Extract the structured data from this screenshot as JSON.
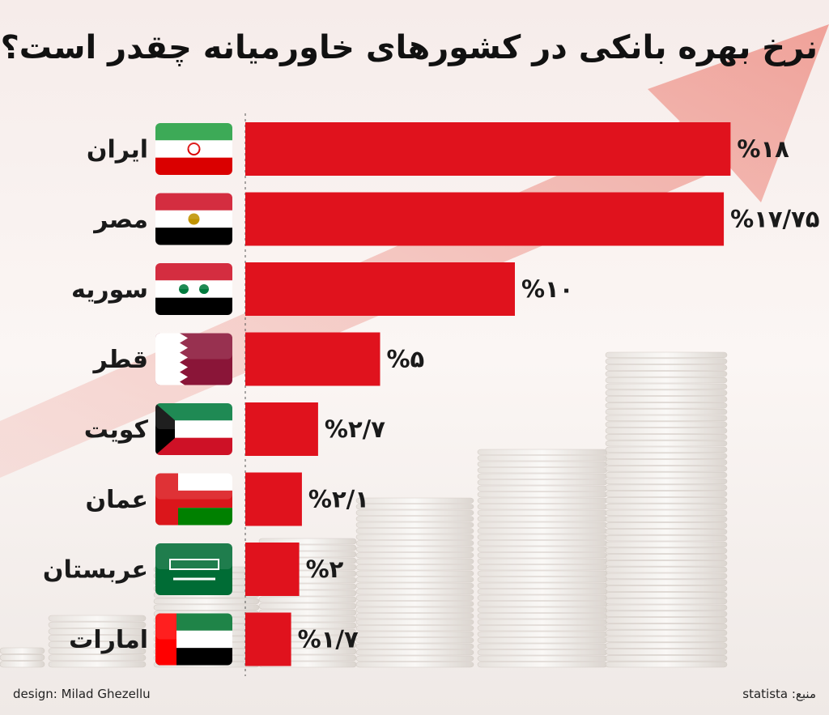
{
  "chart_data": {
    "type": "bar",
    "title": "نرخ بهره بانکی در کشورهای خاورمیانه چقدر است؟",
    "categories": [
      "ایران",
      "مصر",
      "سوریه",
      "قطر",
      "کویت",
      "عمان",
      "عربستان",
      "امارات"
    ],
    "values": [
      18,
      17.75,
      10,
      5,
      2.7,
      2.1,
      2,
      1.7
    ],
    "value_labels": [
      "%۱۸",
      "%۱۷/۷۵",
      "%۱۰",
      "%۵",
      "%۲/۷",
      "%۲/۱",
      "%۲",
      "%۱/۷"
    ],
    "color": "#e0121d",
    "credit": "design: Milad Ghezellu",
    "source": "منبع: statista"
  }
}
